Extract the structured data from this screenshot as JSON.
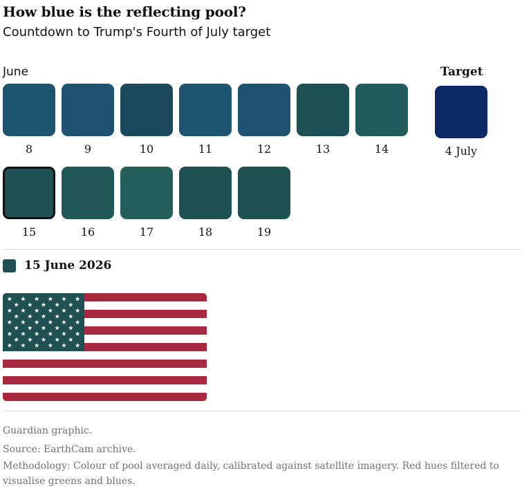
{
  "header": {
    "title": "How blue is the reflecting pool?",
    "subtitle": "Countdown to Trump's Fourth of July target"
  },
  "chart_data": {
    "type": "table",
    "title": "How blue is the reflecting pool?",
    "subtitle": "Countdown to Trump's Fourth of July target",
    "month_label": "June",
    "days": [
      {
        "day": "8",
        "color": "#1f5470"
      },
      {
        "day": "9",
        "color": "#1e5270"
      },
      {
        "day": "10",
        "color": "#1c4a5c"
      },
      {
        "day": "11",
        "color": "#1f5470"
      },
      {
        "day": "12",
        "color": "#1e5270"
      },
      {
        "day": "13",
        "color": "#1e5156"
      },
      {
        "day": "14",
        "color": "#225b5c"
      },
      {
        "day": "15",
        "color": "#1f5052"
      },
      {
        "day": "16",
        "color": "#225758"
      },
      {
        "day": "17",
        "color": "#245e5a"
      },
      {
        "day": "18",
        "color": "#1f5052"
      },
      {
        "day": "19",
        "color": "#1f5052"
      }
    ],
    "selected_day": "15",
    "target": {
      "label": "Target",
      "date": "4 July",
      "color": "#0b2a66"
    }
  },
  "legend": {
    "date": "15 June 2026",
    "color": "#1f5052"
  },
  "flag": {
    "canton_color": "#1f5052",
    "stripe_red": "#a8293f",
    "stripe_white": "#ffffff",
    "star_color": "#ffffff"
  },
  "footer": {
    "credit": "Guardian graphic.",
    "source": "Source: EarthCam archive.",
    "methodology": "Methodology: Colour of pool averaged daily, calibrated against satellite imagery. Red hues filtered to visualise greens and blues."
  }
}
